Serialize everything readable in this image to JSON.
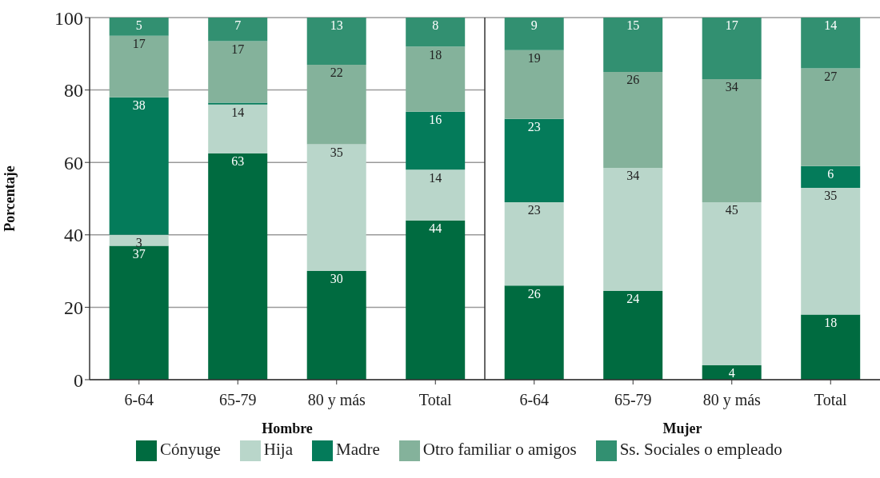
{
  "chart_data": [
    {
      "type": "bar",
      "stacked": true,
      "ylabel": "Porcentaje",
      "xlabel": "Hombre",
      "categories": [
        "6-64",
        "65-79",
        "80 y más",
        "Total"
      ],
      "series": [
        {
          "name": "Cónyuge",
          "color": "#006b40",
          "values": [
            37,
            62.5,
            30,
            44
          ],
          "value_labels": [
            "37",
            "63",
            "30",
            "44"
          ]
        },
        {
          "name": "Hija",
          "color": "#b9d6ca",
          "values": [
            3,
            13.5,
            35,
            14
          ],
          "value_labels": [
            "3",
            "14",
            "35",
            "14"
          ]
        },
        {
          "name": "Madre",
          "color": "#047b5a",
          "values": [
            38,
            0.5,
            null,
            16
          ],
          "value_labels": [
            "38",
            null,
            null,
            "16"
          ]
        },
        {
          "name": "Otro familiar o amigos",
          "color": "#84b29b",
          "values": [
            17,
            17,
            22,
            18
          ],
          "value_labels": [
            "17",
            "17",
            "22",
            "18"
          ]
        },
        {
          "name": "Ss. Sociales o empleado",
          "color": "#329071",
          "values": [
            5,
            6.5,
            13,
            8
          ],
          "value_labels": [
            "5",
            "7",
            "13",
            "8"
          ]
        }
      ],
      "ylim": [
        0,
        100
      ],
      "yticks": [
        0,
        20,
        40,
        60,
        80,
        100
      ],
      "grid": "y",
      "legend": "bottom"
    },
    {
      "type": "bar",
      "stacked": true,
      "xlabel": "Mujer",
      "categories": [
        "6-64",
        "65-79",
        "80 y más",
        "Total"
      ],
      "series": [
        {
          "color": "#006b40",
          "values": [
            26,
            24.5,
            4,
            18
          ],
          "value_labels": [
            "26",
            "24",
            "4",
            "18"
          ]
        },
        {
          "color": "#b9d6ca",
          "values": [
            23,
            34,
            45,
            35
          ],
          "value_labels": [
            "23",
            "34",
            "45",
            "35"
          ]
        },
        {
          "color": "#047b5a",
          "values": [
            23,
            null,
            null,
            6
          ],
          "value_labels": [
            "23",
            null,
            null,
            "6"
          ]
        },
        {
          "color": "#84b29b",
          "values": [
            19,
            26.5,
            34,
            27
          ],
          "value_labels": [
            "19",
            "26",
            "34",
            "27"
          ]
        },
        {
          "color": "#329071",
          "values": [
            9,
            15,
            17,
            14
          ],
          "value_labels": [
            "9",
            "15",
            "17",
            "14"
          ]
        }
      ],
      "ylim": [
        0,
        100
      ],
      "yticks": [
        0,
        20,
        40,
        60,
        80,
        100
      ],
      "grid": "y",
      "tick_labels": "x"
    }
  ]
}
